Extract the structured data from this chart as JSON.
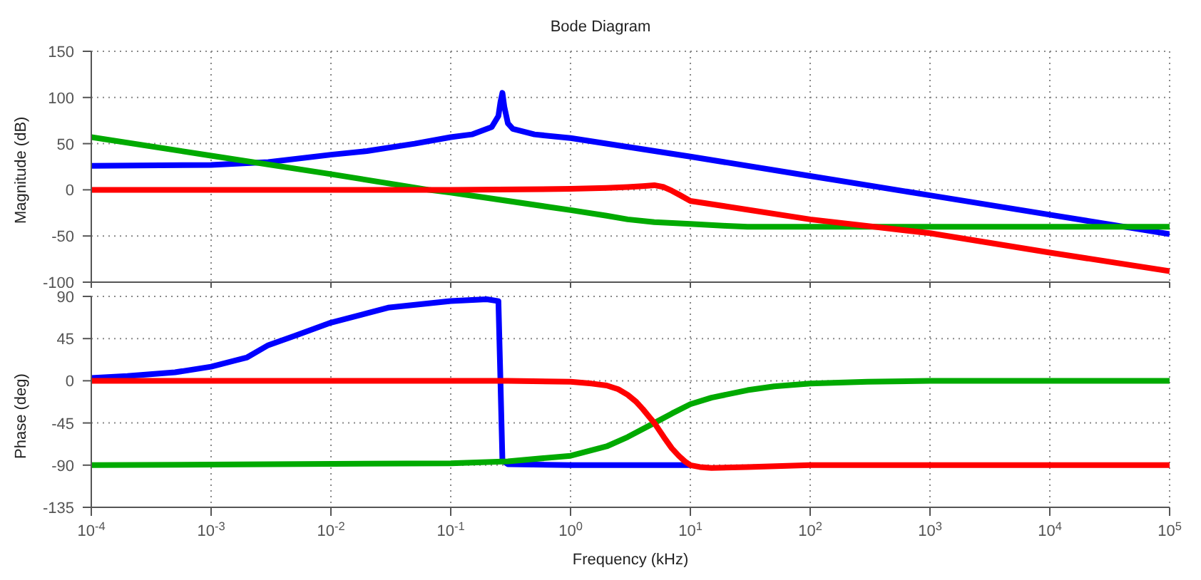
{
  "chart_data": [
    {
      "type": "line",
      "title": "Bode Diagram",
      "ylabel": "Magnitude (dB)",
      "log": "x",
      "grid": true,
      "tick_labels": "y",
      "xlim": [
        0.0001,
        100000
      ],
      "xticks": [
        {
          "value": 0.0001,
          "label": null
        },
        {
          "value": 0.001,
          "label": null
        },
        {
          "value": 0.01,
          "label": null
        },
        {
          "value": 0.1,
          "label": null
        },
        {
          "value": 1,
          "label": null
        },
        {
          "value": 10,
          "label": null
        },
        {
          "value": 100,
          "label": null
        },
        {
          "value": 1000,
          "label": null
        },
        {
          "value": 10000,
          "label": null
        },
        {
          "value": 100000,
          "label": null
        }
      ],
      "ylim": [
        -100,
        150
      ],
      "yticks": [
        -100,
        -50,
        0,
        50,
        100,
        150
      ],
      "series": [
        {
          "color": "#0000ff",
          "x": [
            0.0001,
            0.001,
            0.003,
            0.01,
            0.02,
            0.05,
            0.1,
            0.15,
            0.22,
            0.25,
            0.26,
            0.27,
            0.28,
            0.3,
            0.33,
            0.5,
            1,
            10,
            100,
            1000,
            10000,
            100000
          ],
          "values": [
            26,
            27,
            30,
            38,
            42,
            50,
            57,
            60,
            68,
            80,
            95,
            105,
            90,
            72,
            66,
            60,
            56,
            36,
            15,
            -6,
            -27,
            -48
          ]
        },
        {
          "color": "#00aa00",
          "x": [
            0.0001,
            0.001,
            0.01,
            0.065,
            0.1,
            1,
            2,
            3,
            5,
            10,
            20,
            30,
            100,
            1000,
            100000
          ],
          "values": [
            57,
            37,
            17,
            0,
            -3,
            -22,
            -28,
            -32,
            -35,
            -37,
            -39,
            -40,
            -40,
            -40,
            -40
          ]
        },
        {
          "color": "#ff0000",
          "x": [
            0.0001,
            0.1,
            1,
            2,
            3,
            4,
            5,
            6,
            7,
            8,
            10,
            20,
            100,
            1000,
            10000,
            100000
          ],
          "values": [
            0,
            0,
            1,
            2,
            3,
            4,
            5,
            3,
            -1,
            -5,
            -12,
            -18,
            -32,
            -47,
            -68,
            -88
          ]
        }
      ]
    },
    {
      "type": "line",
      "xlabel": "Frequency  (kHz)",
      "ylabel": "Phase (deg)",
      "log": "x",
      "grid": true,
      "xlim": [
        0.0001,
        100000
      ],
      "xticks": [
        {
          "value": 0.0001,
          "label": "10$^{-4}$"
        },
        {
          "value": 0.001,
          "label": "10$^{-3}$"
        },
        {
          "value": 0.01,
          "label": "10$^{-2}$"
        },
        {
          "value": 0.1,
          "label": "10$^{-1}$"
        },
        {
          "value": 1,
          "label": "10$^{0}$"
        },
        {
          "value": 10,
          "label": "10$^{1}$"
        },
        {
          "value": 100,
          "label": "10$^{2}$"
        },
        {
          "value": 1000,
          "label": "10$^{3}$"
        },
        {
          "value": 10000,
          "label": "10$^{4}$"
        },
        {
          "value": 100000,
          "label": "10$^{5}$"
        }
      ],
      "ylim": [
        -135,
        90
      ],
      "yticks": [
        -135,
        -90,
        -45,
        0,
        45,
        90
      ],
      "series": [
        {
          "color": "#0000ff",
          "x": [
            0.0001,
            0.0002,
            0.0005,
            0.001,
            0.002,
            0.003,
            0.005,
            0.01,
            0.02,
            0.03,
            0.1,
            0.2,
            0.25,
            0.26,
            0.27,
            0.3,
            1,
            10
          ],
          "values": [
            3,
            5,
            9,
            15,
            25,
            38,
            48,
            62,
            72,
            78,
            85,
            87,
            85,
            0,
            -85,
            -89,
            -90,
            -90
          ]
        },
        {
          "color": "#00aa00",
          "x": [
            0.0001,
            0.1,
            0.3,
            1,
            2,
            3,
            5,
            7,
            10,
            15,
            30,
            50,
            100,
            300,
            1000,
            100000
          ],
          "values": [
            -90,
            -88,
            -86,
            -80,
            -70,
            -60,
            -45,
            -35,
            -25,
            -18,
            -10,
            -6,
            -3,
            -1,
            0,
            0
          ]
        },
        {
          "color": "#ff0000",
          "x": [
            0.0001,
            0.3,
            1,
            1.5,
            2,
            2.5,
            3,
            3.5,
            4,
            4.5,
            5,
            6,
            7,
            8,
            9,
            10,
            12,
            15,
            30,
            100,
            100000
          ],
          "values": [
            0,
            0,
            -1,
            -3,
            -5,
            -9,
            -15,
            -22,
            -30,
            -38,
            -45,
            -60,
            -72,
            -80,
            -86,
            -90,
            -92,
            -93,
            -92,
            -90,
            -90
          ]
        }
      ]
    }
  ]
}
